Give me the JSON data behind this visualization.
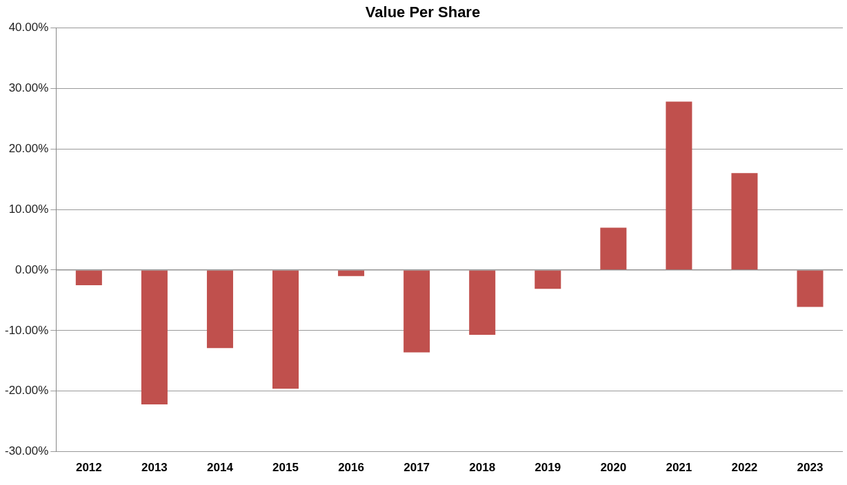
{
  "chart_data": {
    "type": "bar",
    "title": "Value Per Share",
    "categories": [
      "2012",
      "2013",
      "2014",
      "2015",
      "2016",
      "2017",
      "2018",
      "2019",
      "2020",
      "2021",
      "2022",
      "2023"
    ],
    "series": [
      {
        "color": "#c0504d",
        "values": [
          -2.5,
          -22.2,
          -12.9,
          -19.6,
          -1.0,
          -13.6,
          -10.7,
          -3.1,
          7.0,
          27.8,
          16.0,
          -6.1
        ]
      }
    ],
    "ylim": [
      -30,
      40
    ],
    "yticks": [
      {
        "value": -30,
        "label": "-30.00%"
      },
      {
        "value": -20,
        "label": "-20.00%"
      },
      {
        "value": -10,
        "label": "-10.00%"
      },
      {
        "value": 0,
        "label": "0.00%"
      },
      {
        "value": 10,
        "label": "10.00%"
      },
      {
        "value": 20,
        "label": "20.00%"
      },
      {
        "value": 30,
        "label": "30.00%"
      },
      {
        "value": 40,
        "label": "40.00%"
      }
    ],
    "grid": "y",
    "legend": false
  }
}
